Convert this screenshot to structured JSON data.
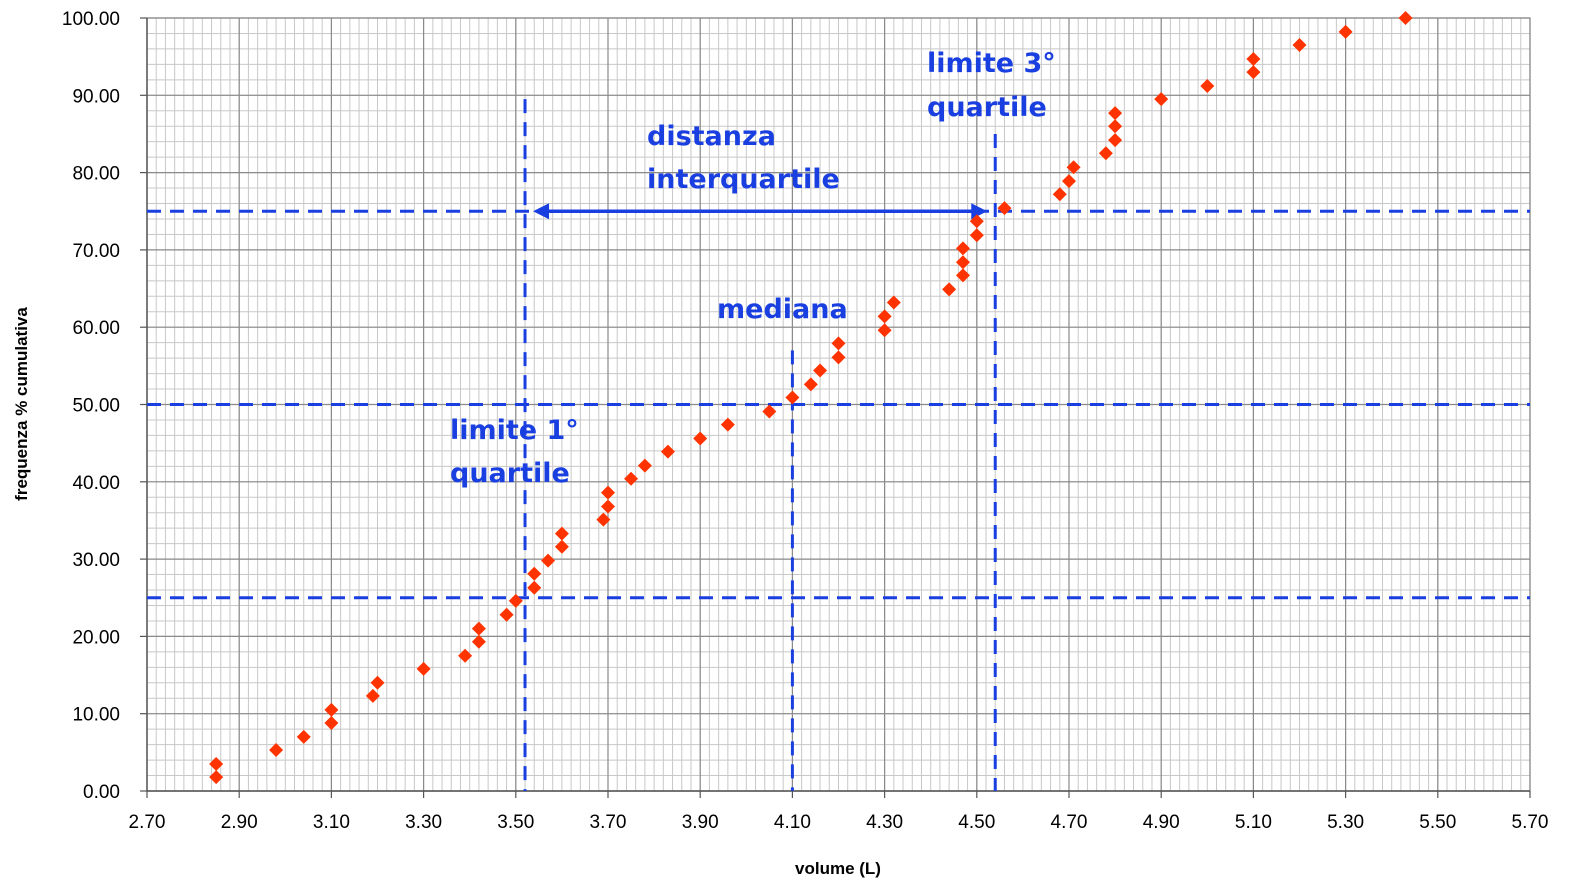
{
  "chart_data": {
    "type": "scatter",
    "xlabel": "volume (L)",
    "ylabel": "frequenza % cumulativa",
    "xlim": [
      2.7,
      5.7
    ],
    "ylim": [
      0,
      100
    ],
    "x_ticks": [
      "2.70",
      "2.90",
      "3.10",
      "3.30",
      "3.50",
      "3.70",
      "3.90",
      "4.10",
      "4.30",
      "4.50",
      "4.70",
      "4.90",
      "5.10",
      "5.30",
      "5.50",
      "5.70"
    ],
    "y_ticks": [
      "0.00",
      "10.00",
      "20.00",
      "30.00",
      "40.00",
      "50.00",
      "60.00",
      "70.00",
      "80.00",
      "90.00",
      "100.00"
    ],
    "grid": true,
    "minor_grid_x_step": 0.02,
    "minor_grid_y_step": 2,
    "marker": "diamond",
    "colors": {
      "points": "#ff3300",
      "reference_lines": "#1a3fe0",
      "annotations": "#1a3fe0",
      "grid_major": "#8a8a8a",
      "grid_minor": "#c8c8c8"
    },
    "series": [
      {
        "points": [
          [
            2.85,
            1.8
          ],
          [
            2.85,
            3.5
          ],
          [
            2.98,
            5.3
          ],
          [
            3.04,
            7.0
          ],
          [
            3.1,
            8.8
          ],
          [
            3.1,
            10.5
          ],
          [
            3.19,
            12.3
          ],
          [
            3.2,
            14.0
          ],
          [
            3.3,
            15.8
          ],
          [
            3.39,
            17.5
          ],
          [
            3.42,
            19.3
          ],
          [
            3.42,
            21.0
          ],
          [
            3.48,
            22.8
          ],
          [
            3.5,
            24.6
          ],
          [
            3.54,
            26.3
          ],
          [
            3.54,
            28.1
          ],
          [
            3.57,
            29.8
          ],
          [
            3.6,
            31.6
          ],
          [
            3.6,
            33.3
          ],
          [
            3.69,
            35.1
          ],
          [
            3.7,
            36.8
          ],
          [
            3.7,
            38.6
          ],
          [
            3.75,
            40.4
          ],
          [
            3.78,
            42.1
          ],
          [
            3.83,
            43.9
          ],
          [
            3.9,
            45.6
          ],
          [
            3.96,
            47.4
          ],
          [
            4.05,
            49.1
          ],
          [
            4.1,
            50.9
          ],
          [
            4.14,
            52.6
          ],
          [
            4.16,
            54.4
          ],
          [
            4.2,
            56.1
          ],
          [
            4.2,
            57.9
          ],
          [
            4.3,
            59.6
          ],
          [
            4.3,
            61.4
          ],
          [
            4.32,
            63.2
          ],
          [
            4.44,
            64.9
          ],
          [
            4.47,
            66.7
          ],
          [
            4.47,
            68.4
          ],
          [
            4.47,
            70.2
          ],
          [
            4.5,
            71.9
          ],
          [
            4.5,
            73.7
          ],
          [
            4.56,
            75.4
          ],
          [
            4.68,
            77.2
          ],
          [
            4.7,
            78.9
          ],
          [
            4.71,
            80.7
          ],
          [
            4.78,
            82.5
          ],
          [
            4.8,
            84.2
          ],
          [
            4.8,
            86.0
          ],
          [
            4.8,
            87.7
          ],
          [
            4.9,
            89.5
          ],
          [
            5.0,
            91.2
          ],
          [
            5.1,
            93.0
          ],
          [
            5.1,
            94.7
          ],
          [
            5.2,
            96.5
          ],
          [
            5.3,
            98.2
          ],
          [
            5.43,
            100.0
          ]
        ]
      }
    ],
    "reference_lines": {
      "horizontal_y": [
        25,
        50,
        75
      ],
      "vertical": [
        {
          "x": 3.52,
          "y_top": 89.5
        },
        {
          "x": 4.1,
          "y_top": 57.0
        },
        {
          "x": 4.54,
          "y_top": 85.0
        }
      ],
      "interquartile_arrow": {
        "x_from": 3.52,
        "x_to": 4.54,
        "y": 75
      }
    },
    "annotations": {
      "q3_line1": "limite 3°",
      "q3_line2": "quartile",
      "iqr_line1": "distanza",
      "iqr_line2": "interquartile",
      "median": "mediana",
      "q1_line1": "limite 1°",
      "q1_line2": "quartile"
    }
  }
}
